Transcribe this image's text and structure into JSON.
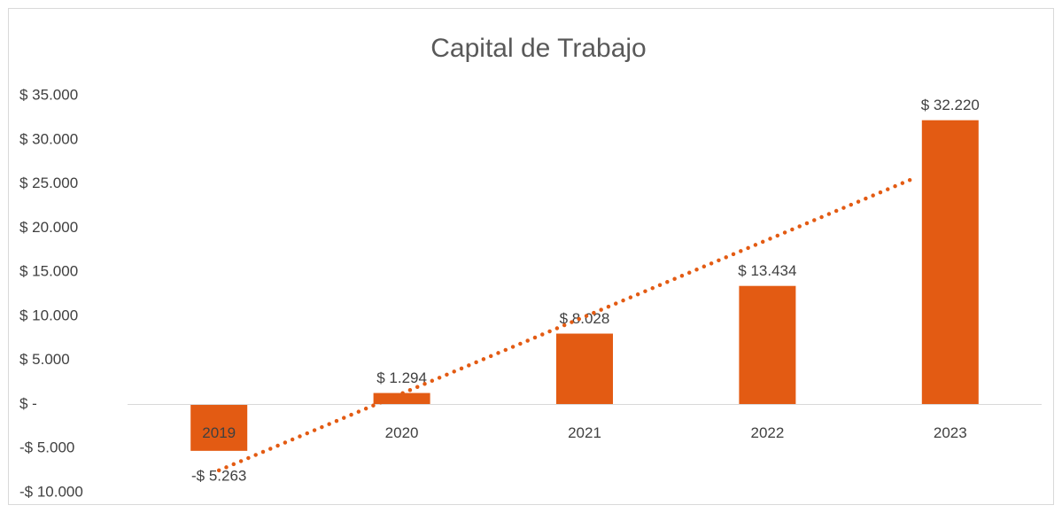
{
  "chart_data": {
    "type": "bar",
    "title": "Capital de Trabajo",
    "categories": [
      "2019",
      "2020",
      "2021",
      "2022",
      "2023"
    ],
    "values": [
      -5263,
      1294,
      8028,
      13434,
      32220
    ],
    "value_labels": [
      "-$ 5.263",
      "$ 1.294",
      "$ 8.028",
      "$ 13.434",
      "$ 32.220"
    ],
    "color": "#e35b13",
    "trendline": "linear",
    "ylim": [
      -10000,
      35000
    ],
    "yticks": [
      {
        "value": -10000,
        "label": "-$ 10.000"
      },
      {
        "value": -5000,
        "label": "-$ 5.000"
      },
      {
        "value": 0,
        "label": "$ -"
      },
      {
        "value": 5000,
        "label": "$ 5.000"
      },
      {
        "value": 10000,
        "label": "$ 10.000"
      },
      {
        "value": 15000,
        "label": "$ 15.000"
      },
      {
        "value": 20000,
        "label": "$ 20.000"
      },
      {
        "value": 25000,
        "label": "$ 25.000"
      },
      {
        "value": 30000,
        "label": "$ 30.000"
      },
      {
        "value": 35000,
        "label": "$ 35.000"
      }
    ],
    "grid": false
  }
}
